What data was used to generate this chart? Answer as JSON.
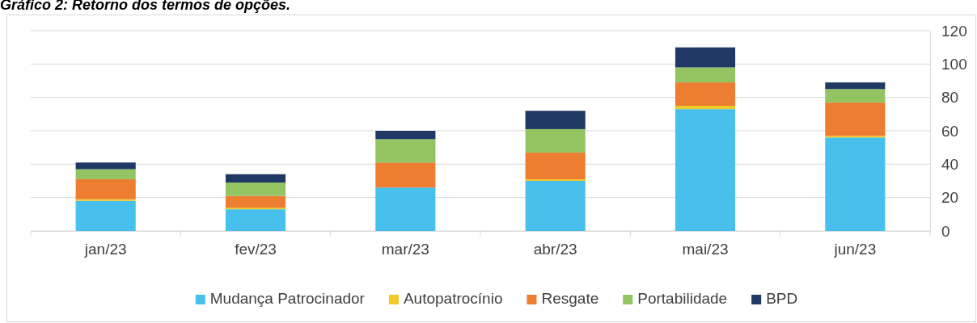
{
  "chart_data": {
    "type": "bar",
    "title": "Gráfico 2: Retorno dos termos de opções.",
    "stacked": true,
    "categories": [
      "jan/23",
      "fev/23",
      "mar/23",
      "abr/23",
      "mai/23",
      "jun/23"
    ],
    "series": [
      {
        "name": "Mudança Patrocinador",
        "color": "#48c0ed",
        "values": [
          18,
          13,
          26,
          30,
          73,
          56
        ]
      },
      {
        "name": "Autopatrocínio",
        "color": "#f0c92a",
        "values": [
          1,
          1,
          0,
          1,
          2,
          1
        ]
      },
      {
        "name": "Resgate",
        "color": "#ed7d31",
        "values": [
          12,
          7,
          15,
          16,
          14,
          20
        ]
      },
      {
        "name": "Portabilidade",
        "color": "#92c462",
        "values": [
          6,
          8,
          14,
          14,
          9,
          8
        ]
      },
      {
        "name": "BPD",
        "color": "#203864",
        "values": [
          4,
          5,
          5,
          11,
          12,
          4
        ]
      }
    ],
    "ylim": [
      0,
      120
    ],
    "yticks": [
      0,
      20,
      40,
      60,
      80,
      100,
      120
    ],
    "grid": "y",
    "legend": "bottom"
  }
}
